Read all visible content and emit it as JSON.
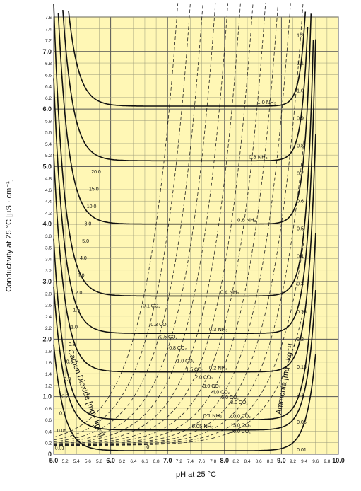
{
  "chart_data": {
    "type": "line",
    "xlabel": "pH at 25 °C",
    "ylabel": "Conductivity at 25 °C  [µS · cm⁻¹]",
    "xlim": [
      5.0,
      10.0
    ],
    "ylim": [
      0.0,
      7.6
    ],
    "x_ticks": [
      5.0,
      5.2,
      5.4,
      5.6,
      5.8,
      6.0,
      6.2,
      6.4,
      6.6,
      6.8,
      7.0,
      7.2,
      7.4,
      7.6,
      7.8,
      8.0,
      8.2,
      8.4,
      8.6,
      8.8,
      9.0,
      9.2,
      9.4,
      9.6,
      9.8,
      10.0
    ],
    "y_ticks": [
      0.0,
      0.2,
      0.4,
      0.6,
      0.8,
      1.0,
      1.2,
      1.4,
      1.6,
      1.8,
      2.0,
      2.2,
      2.4,
      2.6,
      2.8,
      3.0,
      3.2,
      3.4,
      3.6,
      3.8,
      4.0,
      4.2,
      4.4,
      4.6,
      4.8,
      5.0,
      5.2,
      5.4,
      5.6,
      5.8,
      6.0,
      6.2,
      6.4,
      6.6,
      6.8,
      7.0,
      7.2,
      7.4,
      7.6
    ],
    "major_x": [
      "5.0",
      "6.0",
      "7.0",
      "8.0",
      "9.0",
      "10.0"
    ],
    "major_y": [
      "0",
      "1.0",
      "2.0",
      "3.0",
      "4.0",
      "5.0",
      "6.0",
      "7.0"
    ],
    "grid": true,
    "background": "#fff7b5",
    "series_groups": [
      {
        "axis_label": "Ammonia [mg · kg⁻¹]",
        "style": "solid"
      },
      {
        "axis_label": "Carbon Dioxide [mg · kg⁻¹]",
        "style": "dashed"
      }
    ],
    "nh3_curves": [
      {
        "name": "0",
        "min_ph": 7.0,
        "min_y": 0.06
      },
      {
        "name": "0.05 NH₃",
        "min_ph": 7.8,
        "min_y": 0.42
      },
      {
        "name": "0.1 NH₃",
        "min_ph": 8.0,
        "min_y": 0.6
      },
      {
        "name": "0.2 NH₃",
        "min_ph": 8.1,
        "min_y": 1.43
      },
      {
        "name": "0.3 NH₃",
        "min_ph": 8.1,
        "min_y": 2.1
      },
      {
        "name": "0.4 NH₃",
        "min_ph": 8.3,
        "min_y": 2.75
      },
      {
        "name": "0.6 NH₃",
        "min_ph": 8.6,
        "min_y": 4.0
      },
      {
        "name": "0.8 NH₃",
        "min_ph": 8.8,
        "min_y": 5.1
      },
      {
        "name": "1.0 NH₃",
        "min_ph": 8.95,
        "min_y": 6.05
      }
    ],
    "nh3_scale_labels": [
      "0.01",
      "0.05",
      "0.1",
      "0.15",
      "0.2",
      "0.25",
      "0.3",
      "0.4",
      "0.5",
      "0.6",
      "0.7",
      "0.8",
      "0.9",
      "1.0",
      "1.1",
      "1.2"
    ],
    "co2_scale_labels": [
      "0.01",
      "0.05",
      "0.1",
      "0.2",
      "0.3",
      "0.5",
      "0.8",
      "1.0",
      "1.5",
      "2.0",
      "3.0",
      "4.0",
      "5.0",
      "8.0",
      "10.0",
      "15.0",
      "20.0"
    ],
    "co2_curve_labels": [
      "0.1 CO₂",
      "0.3 CO₂",
      "0.5 CO₂",
      "0.8 CO₂",
      "1.0 CO₂",
      "1.5 CO₂",
      "2.0 CO₂",
      "3.0 CO₂",
      "4.0 CO₂",
      "5.0 CO₂",
      "8.0 CO₂",
      "10.0 CO₂",
      "15.0 CO₂",
      "20.0 CO₂"
    ]
  }
}
